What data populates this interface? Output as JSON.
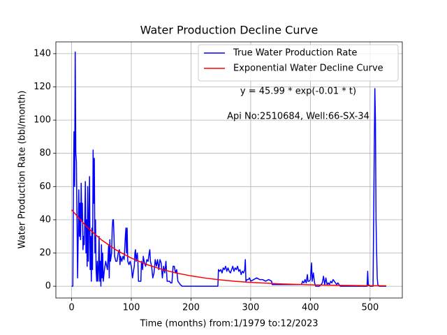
{
  "chart_data": {
    "type": "line",
    "title": "Water Production Decline Curve",
    "xlabel": "Time (months) from:1/1979 to:12/2023",
    "ylabel": "Water Production Rate (bbl/month)",
    "annotations": [
      "y = 45.99 * exp(-0.01 * t)",
      "Api No:2510684, Well:66-SX-34"
    ],
    "xlim": [
      -26.4,
      554
    ],
    "xticks": [
      0,
      100,
      200,
      300,
      400,
      500
    ],
    "ylim": [
      -7.1,
      147.1
    ],
    "yticks": [
      0,
      20,
      40,
      60,
      80,
      100,
      120,
      140
    ],
    "grid": true,
    "legend": "upper right",
    "series": [
      {
        "name": "True Water Production Rate",
        "color": "#0000ff",
        "x": [
          0,
          2,
          3,
          4,
          5,
          6,
          7,
          8,
          9,
          10,
          11,
          12,
          13,
          14,
          15,
          16,
          17,
          18,
          19,
          20,
          21,
          22,
          23,
          24,
          25,
          26,
          27,
          28,
          29,
          30,
          31,
          32,
          33,
          34,
          35,
          36,
          37,
          38,
          39,
          40,
          41,
          42,
          43,
          44,
          45,
          46,
          47,
          48,
          49,
          50,
          51,
          52,
          53,
          55,
          57,
          60,
          62,
          63,
          64,
          65,
          67,
          68,
          69,
          70,
          71,
          72,
          74,
          76,
          78,
          80,
          81,
          82,
          84,
          86,
          88,
          90,
          91,
          92,
          93,
          94,
          96,
          98,
          100,
          102,
          104,
          105,
          106,
          107,
          108,
          109,
          110,
          111,
          112,
          114,
          116,
          117,
          119,
          120,
          122,
          124,
          126,
          128,
          130,
          131,
          132,
          134,
          136,
          138,
          140,
          142,
          144,
          146,
          148,
          150,
          152,
          154,
          156,
          158,
          160,
          162,
          164,
          166,
          168,
          170,
          172,
          174,
          176,
          178,
          180,
          182,
          185,
          200,
          220,
          240,
          245,
          246,
          248,
          250,
          252,
          254,
          256,
          258,
          260,
          262,
          264,
          266,
          268,
          270,
          272,
          274,
          276,
          278,
          280,
          282,
          284,
          286,
          288,
          290,
          291,
          292,
          294,
          296,
          298,
          300,
          305,
          310,
          315,
          320,
          325,
          330,
          335,
          336,
          340,
          360,
          380,
          385,
          387,
          389,
          391,
          393,
          395,
          396,
          398,
          400,
          402,
          403,
          405,
          407,
          409,
          412,
          415,
          418,
          420,
          422,
          424,
          426,
          428,
          430,
          432,
          434,
          436,
          438,
          440,
          442,
          444,
          446,
          450,
          480,
          495,
          496,
          497,
          500,
          505,
          507,
          508,
          509,
          510,
          511,
          512,
          513,
          515,
          527
        ],
        "values": [
          0,
          0,
          60,
          93,
          60,
          141,
          80,
          75,
          40,
          5,
          30,
          58,
          30,
          50,
          28,
          62,
          40,
          50,
          22,
          30,
          25,
          40,
          63,
          20,
          40,
          12,
          60,
          15,
          40,
          66,
          10,
          30,
          3,
          35,
          10,
          82,
          50,
          77,
          20,
          40,
          10,
          3,
          15,
          3,
          10,
          30,
          3,
          15,
          0,
          25,
          5,
          20,
          3,
          10,
          15,
          10,
          25,
          5,
          28,
          15,
          20,
          35,
          40,
          40,
          30,
          18,
          15,
          15,
          20,
          22,
          13,
          18,
          15,
          18,
          16,
          30,
          35,
          20,
          35,
          15,
          13,
          15,
          12,
          5,
          10,
          12,
          20,
          22,
          15,
          18,
          20,
          15,
          3,
          3,
          3,
          15,
          10,
          18,
          14,
          12,
          16,
          15,
          20,
          22,
          15,
          12,
          5,
          8,
          16,
          12,
          16,
          10,
          16,
          14,
          5,
          12,
          8,
          15,
          3,
          3,
          3,
          2,
          2,
          12,
          12,
          8,
          10,
          3,
          2,
          1,
          0,
          0,
          0,
          0,
          0,
          10,
          9,
          10,
          8,
          11,
          10,
          12,
          9,
          11,
          9,
          8,
          10,
          12,
          9,
          11,
          10,
          12,
          9,
          10,
          7,
          9,
          8,
          10,
          16,
          3,
          4,
          4,
          5,
          3,
          4,
          5,
          4,
          4,
          3,
          4,
          3,
          1,
          1,
          1,
          1,
          1,
          3,
          2,
          4,
          2,
          7,
          3,
          3,
          4,
          14,
          3,
          8,
          2,
          0,
          0,
          0,
          1,
          2,
          6,
          1,
          5,
          1,
          2,
          1,
          3,
          2,
          4,
          3,
          2,
          1,
          2,
          0,
          0,
          0,
          9,
          1,
          0,
          0,
          80,
          119,
          100,
          40,
          20,
          5,
          1,
          0,
          0
        ]
      },
      {
        "name": "Exponential Water Decline Curve",
        "color": "#ff0000",
        "x": [
          0,
          25,
          50,
          75,
          100,
          125,
          150,
          175,
          200,
          225,
          250,
          275,
          300,
          350,
          400,
          450,
          500,
          527
        ],
        "values": [
          45.99,
          35.82,
          27.89,
          21.72,
          16.92,
          13.18,
          10.26,
          7.99,
          6.22,
          4.85,
          3.78,
          2.94,
          2.29,
          1.39,
          0.84,
          0.51,
          0.31,
          0.24
        ]
      }
    ]
  }
}
